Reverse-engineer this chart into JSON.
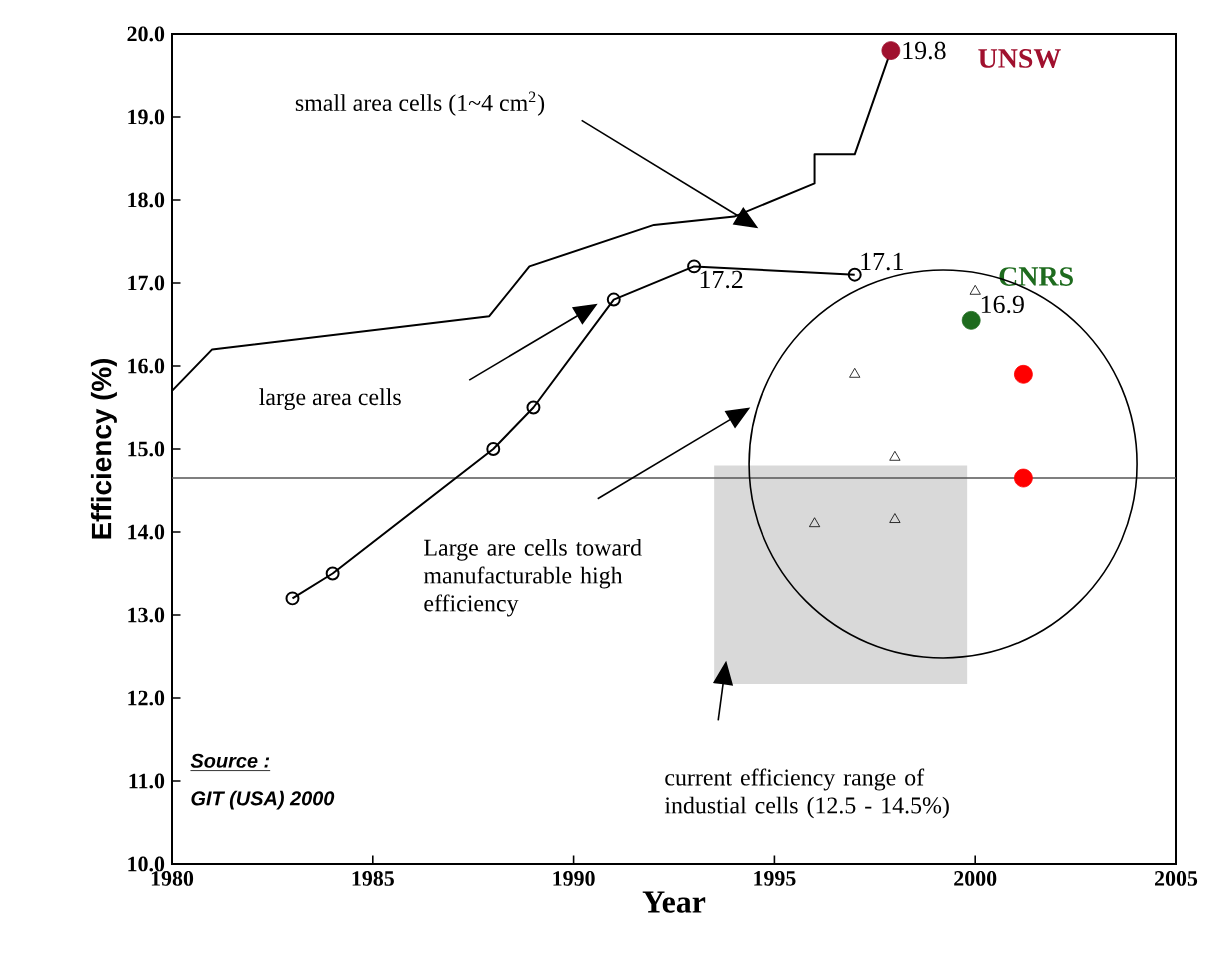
{
  "chart_data": {
    "type": "line",
    "xlabel": "Year",
    "ylabel": "Efficiency (%)",
    "xlim": [
      1980,
      2005
    ],
    "xticks": [
      1980,
      1985,
      1990,
      1995,
      2000,
      2005
    ],
    "ylim": [
      10,
      20
    ],
    "yticks": [
      {
        "value": 10,
        "label": "10.0"
      },
      {
        "value": 11,
        "label": "11.0"
      },
      {
        "value": 12,
        "label": "12.0"
      },
      {
        "value": 13,
        "label": "13.0"
      },
      {
        "value": 14,
        "label": "14.0"
      },
      {
        "value": 15,
        "label": "15.0"
      },
      {
        "value": 16,
        "label": "16.0"
      },
      {
        "value": 17,
        "label": "17.0"
      },
      {
        "value": 18,
        "label": "18.0"
      },
      {
        "value": 19,
        "label": "19.0"
      },
      {
        "value": 20,
        "label": "20.0"
      }
    ],
    "series": [
      {
        "type": "line",
        "color": "#000000",
        "marker": "none",
        "x": [
          1980,
          1981,
          1987.9,
          1988.9,
          1992,
          1994,
          1996,
          1996,
          1997,
          1997.9
        ],
        "values": [
          15.7,
          16.2,
          16.6,
          17.2,
          17.7,
          17.8,
          18.2,
          18.55,
          18.55,
          19.8
        ]
      },
      {
        "type": "line",
        "color": "#000000",
        "marker": "circle",
        "x": [
          1983,
          1984,
          1988,
          1989,
          1991,
          1993,
          1997
        ],
        "values": [
          13.2,
          13.5,
          15.0,
          15.5,
          16.8,
          17.2,
          17.1
        ],
        "value_labels": [
          null,
          null,
          null,
          null,
          null,
          "17.2",
          "17.1"
        ]
      },
      {
        "type": "scatter",
        "color": "#000000",
        "marker": "triangle",
        "x": [
          1996,
          1997,
          1998,
          1998,
          2000
        ],
        "values": [
          14.1,
          15.9,
          14.9,
          14.15,
          16.9
        ],
        "value_labels": [
          null,
          null,
          null,
          null,
          "16.9"
        ]
      },
      {
        "type": "scatter",
        "name": "UNSW",
        "color": "#a0102e",
        "marker": "circle",
        "x": [
          1997.9
        ],
        "values": [
          19.8
        ],
        "value_labels": [
          "19.8"
        ]
      },
      {
        "type": "scatter",
        "name": "CNRS",
        "color": "#1e6b1e",
        "marker": "circle",
        "x": [
          1999.9
        ],
        "values": [
          16.55
        ]
      },
      {
        "type": "scatter",
        "color": "#ff0000",
        "marker": "circle",
        "x": [
          2001.2,
          2001.2
        ],
        "values": [
          15.9,
          14.65
        ]
      }
    ],
    "ref_lines": [
      {
        "axis": "y",
        "value": 14.65,
        "color": "#555555"
      }
    ],
    "annotations": [
      "small area cells (1~4 cm$^{2}$)",
      "large area cells",
      "Large are cells toward manufacturable high efficiency",
      "current efficiency range of industial cells (12.5 - 14.5%)",
      "Source :",
      "GIT (USA) 2000"
    ]
  }
}
